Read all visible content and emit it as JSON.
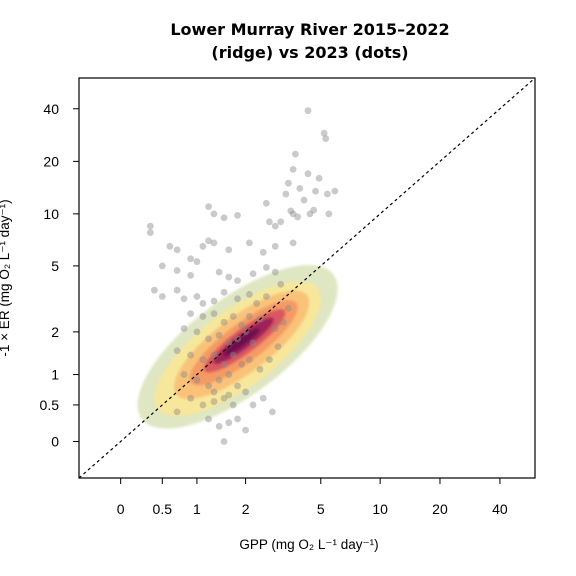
{
  "chart_data": {
    "type": "scatter",
    "title": "Lower Murray River  2015–2022",
    "subtitle": "(ridge) vs 2023 (dots)",
    "xlabel": "GPP (mg O₂ L⁻¹ day⁻¹)",
    "ylabel": "-1 × ER (mg O₂ L⁻¹ day⁻¹)",
    "x_scale": "asinh",
    "y_scale": "asinh",
    "xlim": [
      -0.5,
      60
    ],
    "ylim": [
      -0.5,
      60
    ],
    "x_ticks": [
      {
        "value": 0,
        "label": "0"
      },
      {
        "value": 0.5,
        "label": "0.5"
      },
      {
        "value": 1,
        "label": "1"
      },
      {
        "value": 2,
        "label": "2"
      },
      {
        "value": 5,
        "label": "5"
      },
      {
        "value": 10,
        "label": "10"
      },
      {
        "value": 20,
        "label": "20"
      },
      {
        "value": 40,
        "label": "40"
      }
    ],
    "y_ticks": [
      {
        "value": 0,
        "label": "0"
      },
      {
        "value": 0.5,
        "label": "0.5"
      },
      {
        "value": 1,
        "label": "1"
      },
      {
        "value": 2,
        "label": "2"
      },
      {
        "value": 5,
        "label": "5"
      },
      {
        "value": 10,
        "label": "10"
      },
      {
        "value": 20,
        "label": "20"
      },
      {
        "value": 40,
        "label": "40"
      }
    ],
    "reference_line": {
      "type": "1:1",
      "style": "dashed",
      "color": "#000000"
    },
    "ridge_levels": [
      {
        "level": 1,
        "color": "#dfe6c2"
      },
      {
        "level": 2,
        "color": "#f7e79a"
      },
      {
        "level": 3,
        "color": "#f9c278"
      },
      {
        "level": 4,
        "color": "#f49a63"
      },
      {
        "level": 5,
        "color": "#d9585e"
      },
      {
        "level": 6,
        "color": "#9e2159"
      },
      {
        "level": 7,
        "color": "#6e0f4d"
      }
    ],
    "point_color": "#8a8a8a",
    "series": [
      {
        "kind": "points",
        "points": [
          [
            4.3,
            39
          ],
          [
            5.2,
            29
          ],
          [
            5.3,
            27
          ],
          [
            3.7,
            22
          ],
          [
            3.6,
            18
          ],
          [
            4.3,
            17
          ],
          [
            4.9,
            16
          ],
          [
            5.9,
            13.5
          ],
          [
            4.7,
            13.5
          ],
          [
            5.4,
            13
          ],
          [
            3.3,
            13
          ],
          [
            3.4,
            15
          ],
          [
            3.9,
            14
          ],
          [
            4.1,
            12
          ],
          [
            3.6,
            10
          ],
          [
            3.5,
            10.4
          ],
          [
            3.8,
            9.6
          ],
          [
            4.4,
            10
          ],
          [
            4.6,
            10.5
          ],
          [
            5.5,
            10
          ],
          [
            2.6,
            11.5
          ],
          [
            1.8,
            9.8
          ],
          [
            1.2,
            11
          ],
          [
            1.3,
            10
          ],
          [
            1.5,
            9.5
          ],
          [
            2.7,
            9
          ],
          [
            2.9,
            8.5
          ],
          [
            3.1,
            9
          ],
          [
            0.35,
            8.5
          ],
          [
            0.35,
            7.8
          ],
          [
            1.2,
            7
          ],
          [
            1.3,
            6.8
          ],
          [
            1.1,
            6.5
          ],
          [
            0.6,
            6.5
          ],
          [
            0.7,
            6.2
          ],
          [
            0.9,
            5.5
          ],
          [
            1.0,
            5.3
          ],
          [
            1.6,
            6.2
          ],
          [
            2.1,
            6.8
          ],
          [
            2.5,
            6
          ],
          [
            2.9,
            6.5
          ],
          [
            3.6,
            6.8
          ],
          [
            0.5,
            5
          ],
          [
            0.7,
            4.7
          ],
          [
            0.9,
            4.4
          ],
          [
            1.4,
            4.6
          ],
          [
            1.6,
            4.3
          ],
          [
            1.8,
            4.1
          ],
          [
            2.2,
            4.5
          ],
          [
            2.6,
            4.9
          ],
          [
            2.9,
            4.6
          ],
          [
            3.1,
            3.9
          ],
          [
            0.4,
            3.6
          ],
          [
            0.5,
            3.3
          ],
          [
            0.7,
            3.6
          ],
          [
            0.8,
            3.2
          ],
          [
            1.0,
            3.3
          ],
          [
            1.1,
            3.0
          ],
          [
            1.3,
            3.1
          ],
          [
            1.5,
            3.5
          ],
          [
            1.8,
            3.2
          ],
          [
            2.1,
            3.4
          ],
          [
            2.3,
            3.0
          ],
          [
            2.6,
            3.3
          ],
          [
            0.9,
            2.6
          ],
          [
            1.1,
            2.5
          ],
          [
            1.3,
            2.6
          ],
          [
            1.5,
            2.3
          ],
          [
            1.7,
            2.5
          ],
          [
            1.9,
            2.2
          ],
          [
            2.1,
            2.5
          ],
          [
            2.4,
            2.4
          ],
          [
            0.8,
            2.1
          ],
          [
            1.0,
            2.0
          ],
          [
            1.2,
            1.8
          ],
          [
            1.4,
            1.9
          ],
          [
            1.6,
            1.7
          ],
          [
            1.8,
            1.8
          ],
          [
            2.0,
            2.0
          ],
          [
            2.2,
            1.7
          ],
          [
            0.7,
            1.5
          ],
          [
            0.9,
            1.4
          ],
          [
            1.1,
            1.3
          ],
          [
            1.3,
            1.4
          ],
          [
            1.5,
            1.2
          ],
          [
            1.7,
            1.4
          ],
          [
            1.9,
            1.2
          ],
          [
            2.1,
            1.3
          ],
          [
            0.8,
            1.0
          ],
          [
            1.0,
            0.9
          ],
          [
            1.2,
            0.8
          ],
          [
            1.4,
            0.9
          ],
          [
            1.6,
            1.0
          ],
          [
            1.8,
            0.8
          ],
          [
            2.0,
            0.7
          ],
          [
            0.9,
            0.6
          ],
          [
            1.1,
            0.5
          ],
          [
            1.3,
            0.55
          ],
          [
            1.5,
            0.6
          ],
          [
            1.7,
            0.5
          ],
          [
            0.7,
            0.4
          ],
          [
            1.2,
            0.3
          ],
          [
            1.4,
            0.2
          ],
          [
            1.6,
            0.25
          ],
          [
            1.8,
            0.3
          ],
          [
            2.0,
            0.15
          ],
          [
            1.5,
            0.0
          ],
          [
            2.2,
            0.5
          ],
          [
            2.5,
            0.6
          ],
          [
            2.8,
            0.4
          ],
          [
            1.3,
            0.7
          ],
          [
            1.6,
            0.65
          ],
          [
            2.4,
            1.1
          ],
          [
            2.7,
            1.3
          ],
          [
            3.0,
            1.6
          ],
          [
            3.2,
            2.3
          ],
          [
            3.4,
            2.8
          ],
          [
            2.9,
            2.1
          ]
        ]
      }
    ]
  }
}
